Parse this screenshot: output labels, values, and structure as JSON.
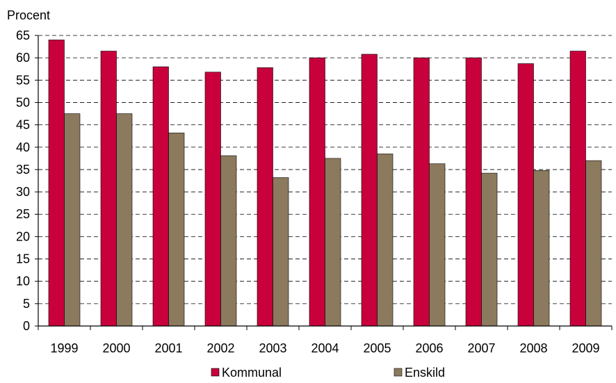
{
  "chart_data": {
    "type": "bar",
    "title": "",
    "xlabel": "",
    "ylabel": "Procent",
    "ylim": [
      0,
      65
    ],
    "yticks": [
      0,
      5,
      10,
      15,
      20,
      25,
      30,
      35,
      40,
      45,
      50,
      55,
      60,
      65
    ],
    "grid": true,
    "legend_position": "bottom",
    "categories": [
      "1999",
      "2000",
      "2001",
      "2002",
      "2003",
      "2004",
      "2005",
      "2006",
      "2007",
      "2008",
      "2009"
    ],
    "series": [
      {
        "name": "Kommunal",
        "color": "#c8003c",
        "values": [
          64.0,
          61.5,
          58.0,
          56.8,
          57.8,
          60.0,
          60.8,
          60.0,
          60.0,
          58.7,
          61.5
        ]
      },
      {
        "name": "Enskild",
        "color": "#8c7a5e",
        "values": [
          47.5,
          47.5,
          43.2,
          38.1,
          33.2,
          37.5,
          38.5,
          36.3,
          34.2,
          34.8,
          37.0
        ]
      }
    ]
  }
}
